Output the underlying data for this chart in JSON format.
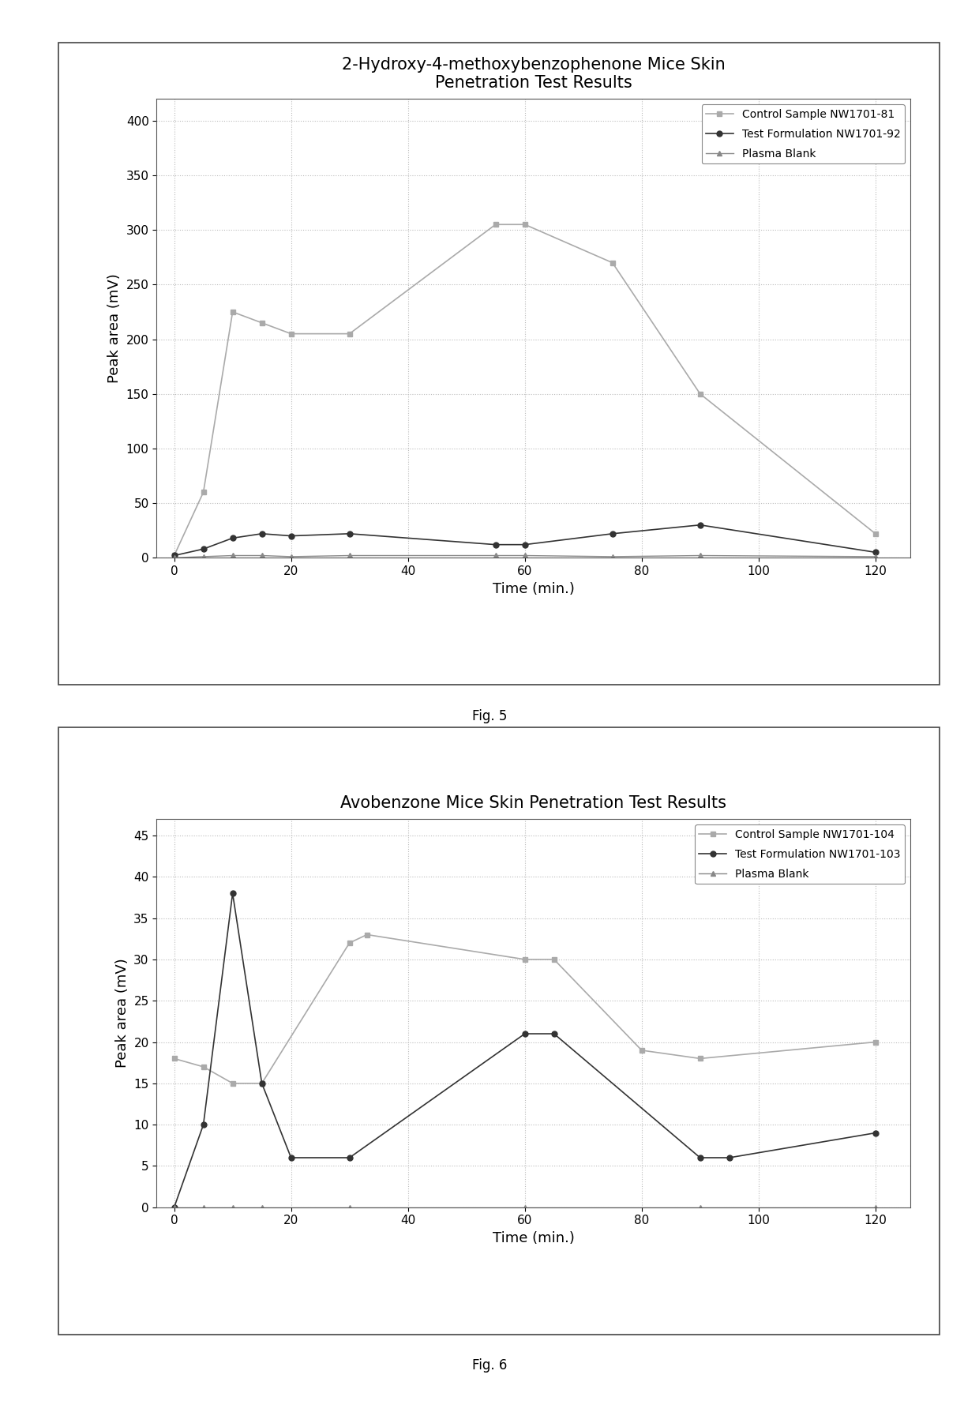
{
  "fig1": {
    "title": "2-Hydroxy-4-methoxybenzophenone Mice Skin\nPenetration Test Results",
    "xlabel": "Time (min.)",
    "ylabel": "Peak area (mV)",
    "ylim": [
      0,
      420
    ],
    "yticks": [
      0,
      50,
      100,
      150,
      200,
      250,
      300,
      350,
      400
    ],
    "xlim": [
      -3,
      126
    ],
    "xticks": [
      0,
      20,
      40,
      60,
      80,
      100,
      120
    ],
    "series": [
      {
        "label": "Control Sample NW1701-81",
        "x": [
          0,
          5,
          10,
          15,
          20,
          30,
          55,
          60,
          75,
          90,
          120
        ],
        "y": [
          2,
          60,
          225,
          215,
          205,
          205,
          305,
          305,
          270,
          150,
          22
        ],
        "color": "#aaaaaa",
        "marker": "s",
        "linewidth": 1.2,
        "markersize": 5
      },
      {
        "label": "Test Formulation NW1701-92",
        "x": [
          0,
          5,
          10,
          15,
          20,
          30,
          55,
          60,
          75,
          90,
          120
        ],
        "y": [
          2,
          8,
          18,
          22,
          20,
          22,
          12,
          12,
          22,
          30,
          5
        ],
        "color": "#333333",
        "marker": "o",
        "linewidth": 1.2,
        "markersize": 5
      },
      {
        "label": "Plasma Blank",
        "x": [
          0,
          5,
          10,
          15,
          20,
          30,
          55,
          60,
          75,
          90,
          120
        ],
        "y": [
          0,
          1,
          2,
          2,
          1,
          2,
          2,
          2,
          1,
          2,
          1
        ],
        "color": "#888888",
        "marker": "^",
        "linewidth": 1.0,
        "markersize": 5
      }
    ],
    "legend_loc": "upper right",
    "fig_label": "Fig. 5"
  },
  "fig2": {
    "title": "Avobenzone Mice Skin Penetration Test Results",
    "xlabel": "Time (min.)",
    "ylabel": "Peak area (mV)",
    "ylim": [
      0,
      47
    ],
    "yticks": [
      0,
      5,
      10,
      15,
      20,
      25,
      30,
      35,
      40,
      45
    ],
    "xlim": [
      -3,
      126
    ],
    "xticks": [
      0,
      20,
      40,
      60,
      80,
      100,
      120
    ],
    "series": [
      {
        "label": "Control Sample NW1701-104",
        "x": [
          0,
          5,
          10,
          15,
          30,
          33,
          60,
          65,
          80,
          90,
          120
        ],
        "y": [
          18,
          17,
          15,
          15,
          32,
          33,
          30,
          30,
          19,
          18,
          20
        ],
        "color": "#aaaaaa",
        "marker": "s",
        "linewidth": 1.2,
        "markersize": 5
      },
      {
        "label": "Test Formulation NW1701-103",
        "x": [
          0,
          5,
          10,
          15,
          20,
          30,
          60,
          65,
          90,
          95,
          120
        ],
        "y": [
          0,
          10,
          38,
          15,
          6,
          6,
          21,
          21,
          6,
          6,
          9
        ],
        "color": "#333333",
        "marker": "o",
        "linewidth": 1.2,
        "markersize": 5
      },
      {
        "label": "Plasma Blank",
        "x": [
          0,
          5,
          10,
          15,
          30,
          60,
          90,
          120
        ],
        "y": [
          0,
          0,
          0,
          0,
          0,
          0,
          0,
          0
        ],
        "color": "#888888",
        "marker": "^",
        "linewidth": 1.0,
        "markersize": 5
      }
    ],
    "legend_loc": "upper right",
    "fig_label": "Fig. 6"
  },
  "background_color": "#ffffff",
  "panel_bg": "#ffffff",
  "grid_color": "#bbbbbb",
  "grid_linestyle": ":",
  "grid_linewidth": 0.8,
  "spine_color": "#555555",
  "title_fontsize": 15,
  "label_fontsize": 13,
  "tick_fontsize": 11,
  "legend_fontsize": 10,
  "figlabel_fontsize": 12
}
